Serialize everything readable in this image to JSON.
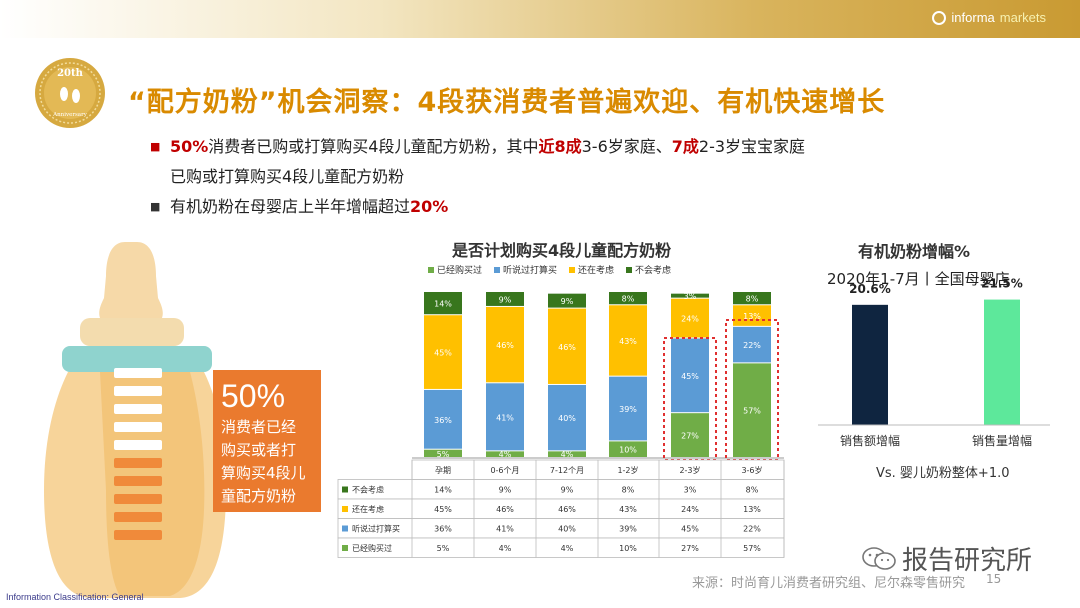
{
  "header": {
    "brand_left": "informa",
    "brand_right": "markets"
  },
  "seal": {
    "top_text": "20th",
    "bottom_text": "Anniversary"
  },
  "title": "“配方奶粉”机会洞察：4段获消费者普遍欢迎、有机快速增长",
  "bullets": {
    "b1_pre": "50%",
    "b1_t1": "消费者已购或打算购买4段儿童配方奶粉，其中",
    "b1_hl2": "近8成",
    "b1_t2": "3-6岁家庭、",
    "b1_hl3": "7成",
    "b1_t3": "2-3岁宝宝家庭",
    "b1_cont": "已购或打算购买4段儿童配方奶粉",
    "b2_text": "有机奶粉在母婴店上半年增幅超过",
    "b2_hl": "20%"
  },
  "callout": {
    "number": "50%",
    "line1": "消费者已经",
    "line2": "购买或者打",
    "line3": "算购买4段儿",
    "line4": "童配方奶粉"
  },
  "colors": {
    "bought": "#70ad47",
    "heard": "#5b9bd5",
    "considering": "#ffc000",
    "not": "#38761d",
    "highlight_box": "#e03030",
    "sales_value": "#0f2540",
    "sales_volume": "#5de89b",
    "title": "#d98a00",
    "orange": "#ea7a2e"
  },
  "chart_data": [
    {
      "type": "bar",
      "stacked": true,
      "title": "是否计划购买4段儿童配方奶粉",
      "categories": [
        "孕期",
        "0-6个月",
        "7-12个月",
        "1-2岁",
        "2-3岁",
        "3-6岁"
      ],
      "series": [
        {
          "name": "已经购买过",
          "values": [
            5,
            4,
            4,
            10,
            27,
            57
          ],
          "labels": [
            "5%",
            "4%",
            "4%",
            "10%",
            "27%",
            "57%"
          ]
        },
        {
          "name": "听说过打算买",
          "values": [
            36,
            41,
            40,
            39,
            45,
            22
          ],
          "labels": [
            "36%",
            "41%",
            "40%",
            "39%",
            "45%",
            "22%"
          ]
        },
        {
          "name": "还在考虑",
          "values": [
            45,
            46,
            46,
            43,
            24,
            13
          ],
          "labels": [
            "45%",
            "46%",
            "46%",
            "43%",
            "24%",
            "13%"
          ]
        },
        {
          "name": "不会考虑",
          "values": [
            14,
            9,
            9,
            8,
            3,
            8
          ],
          "labels": [
            "14%",
            "9%",
            "9%",
            "8%",
            "3%",
            "8%"
          ]
        }
      ],
      "legend_order": [
        "已经购买过",
        "听说过打算买",
        "还在考虑",
        "不会考虑"
      ],
      "table_row_order": [
        "不会考虑",
        "还在考虑",
        "听说过打算买",
        "已经购买过"
      ],
      "highlighted_categories": [
        "2-3岁",
        "3-6岁"
      ],
      "ylim": [
        0,
        100
      ]
    },
    {
      "type": "bar",
      "title": "有机奶粉增幅%",
      "subtitle": "2020年1-7月丨全国母婴店",
      "categories": [
        "销售额增幅",
        "销售量增幅"
      ],
      "values": [
        20.6,
        21.5
      ],
      "labels": [
        "20.6%",
        "21.5%"
      ],
      "note": "Vs. 婴儿奶粉整体+1.0",
      "ylim": [
        0,
        24
      ]
    }
  ],
  "footer": {
    "source": "来源：时尚育儿消费者研究组、尼尔森零售研究",
    "page": "15",
    "watermark": "报告研究所",
    "classification": "Information Classification: General"
  }
}
